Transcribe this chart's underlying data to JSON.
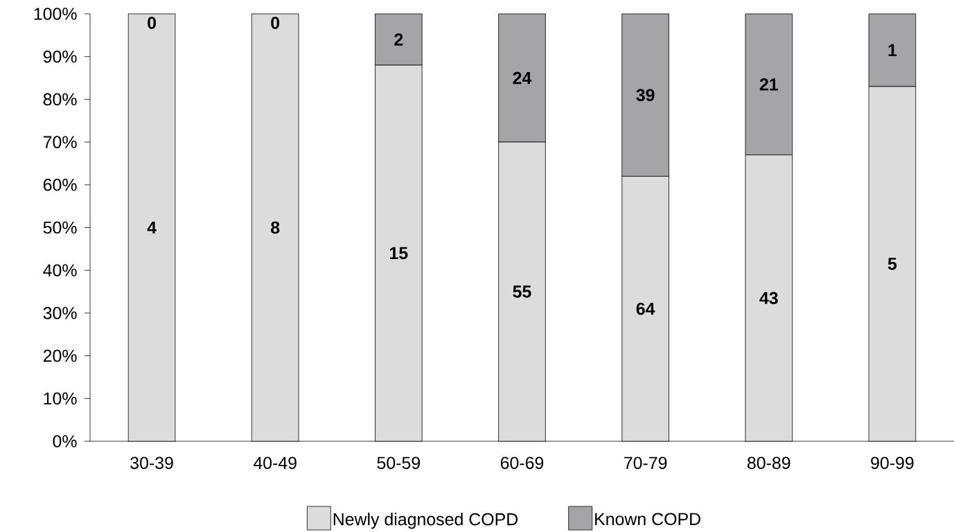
{
  "chart_data": {
    "type": "bar",
    "stacked": true,
    "categories": [
      "30-39",
      "40-49",
      "50-59",
      "60-69",
      "70-79",
      "80-89",
      "90-99"
    ],
    "series": [
      {
        "name": "Newly diagnosed COPD",
        "color": "#dcdcdd",
        "values": [
          100,
          100,
          88,
          70,
          62,
          67,
          83
        ]
      },
      {
        "name": "Known COPD",
        "color": "#a5a5a7",
        "values": [
          0,
          0,
          12,
          30,
          38,
          33,
          17
        ]
      }
    ],
    "ylim": [
      0,
      100
    ],
    "yticks": [
      {
        "value": 0,
        "label": "0%"
      },
      {
        "value": 10,
        "label": "10%"
      },
      {
        "value": 20,
        "label": "20%"
      },
      {
        "value": 30,
        "label": "30%"
      },
      {
        "value": 40,
        "label": "40%"
      },
      {
        "value": 50,
        "label": "50%"
      },
      {
        "value": 60,
        "label": "60%"
      },
      {
        "value": 70,
        "label": "70%"
      },
      {
        "value": 80,
        "label": "80%"
      },
      {
        "value": 90,
        "label": "90%"
      },
      {
        "value": 100,
        "label": "100%"
      }
    ],
    "annotations": [
      "4",
      "8",
      "15",
      "55",
      "64",
      "43",
      "5",
      "0",
      "0",
      "2",
      "24",
      "39",
      "21",
      "1"
    ],
    "grid": false,
    "legend": "bottom"
  }
}
